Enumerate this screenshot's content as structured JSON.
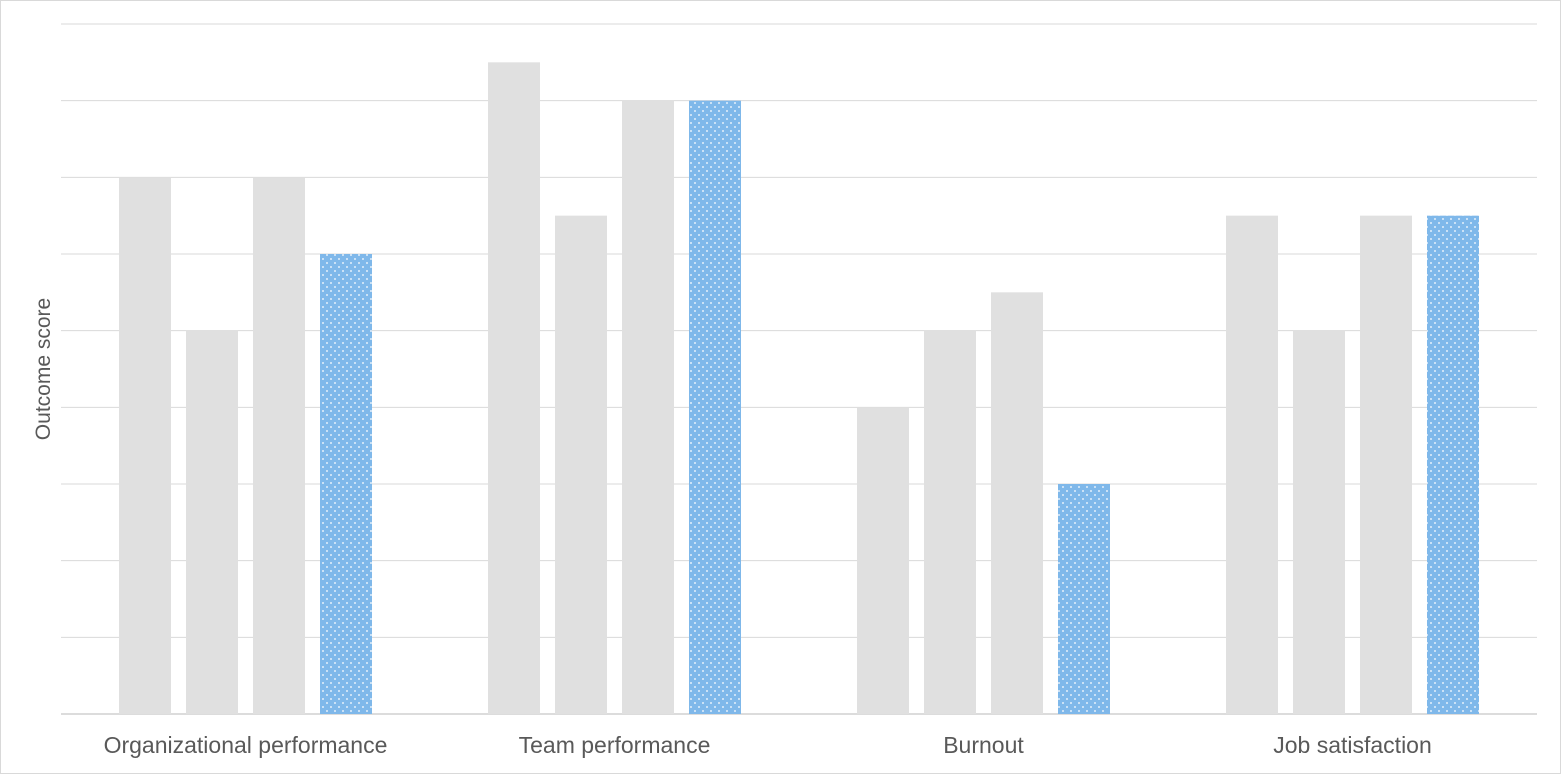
{
  "chart_data": {
    "type": "bar",
    "ylabel": "Outcome score",
    "xlabel": "",
    "categories": [
      "Organizational performance",
      "Team performance",
      "Burnout",
      "Job satisfaction"
    ],
    "series": [
      {
        "values": [
          7,
          8.5,
          4,
          6.5
        ],
        "color": "#e0e0e0",
        "pattern": "solid"
      },
      {
        "values": [
          5,
          6.5,
          5,
          5
        ],
        "color": "#e0e0e0",
        "pattern": "solid"
      },
      {
        "values": [
          7,
          8,
          5.5,
          6.5
        ],
        "color": "#e0e0e0",
        "pattern": "solid"
      },
      {
        "values": [
          6,
          8,
          3,
          6.5
        ],
        "color": "#7fb8ea",
        "pattern": "dotted"
      }
    ],
    "ylim": [
      0,
      9
    ],
    "grid": true,
    "y_tick_labels_visible": false,
    "legend": "none"
  }
}
